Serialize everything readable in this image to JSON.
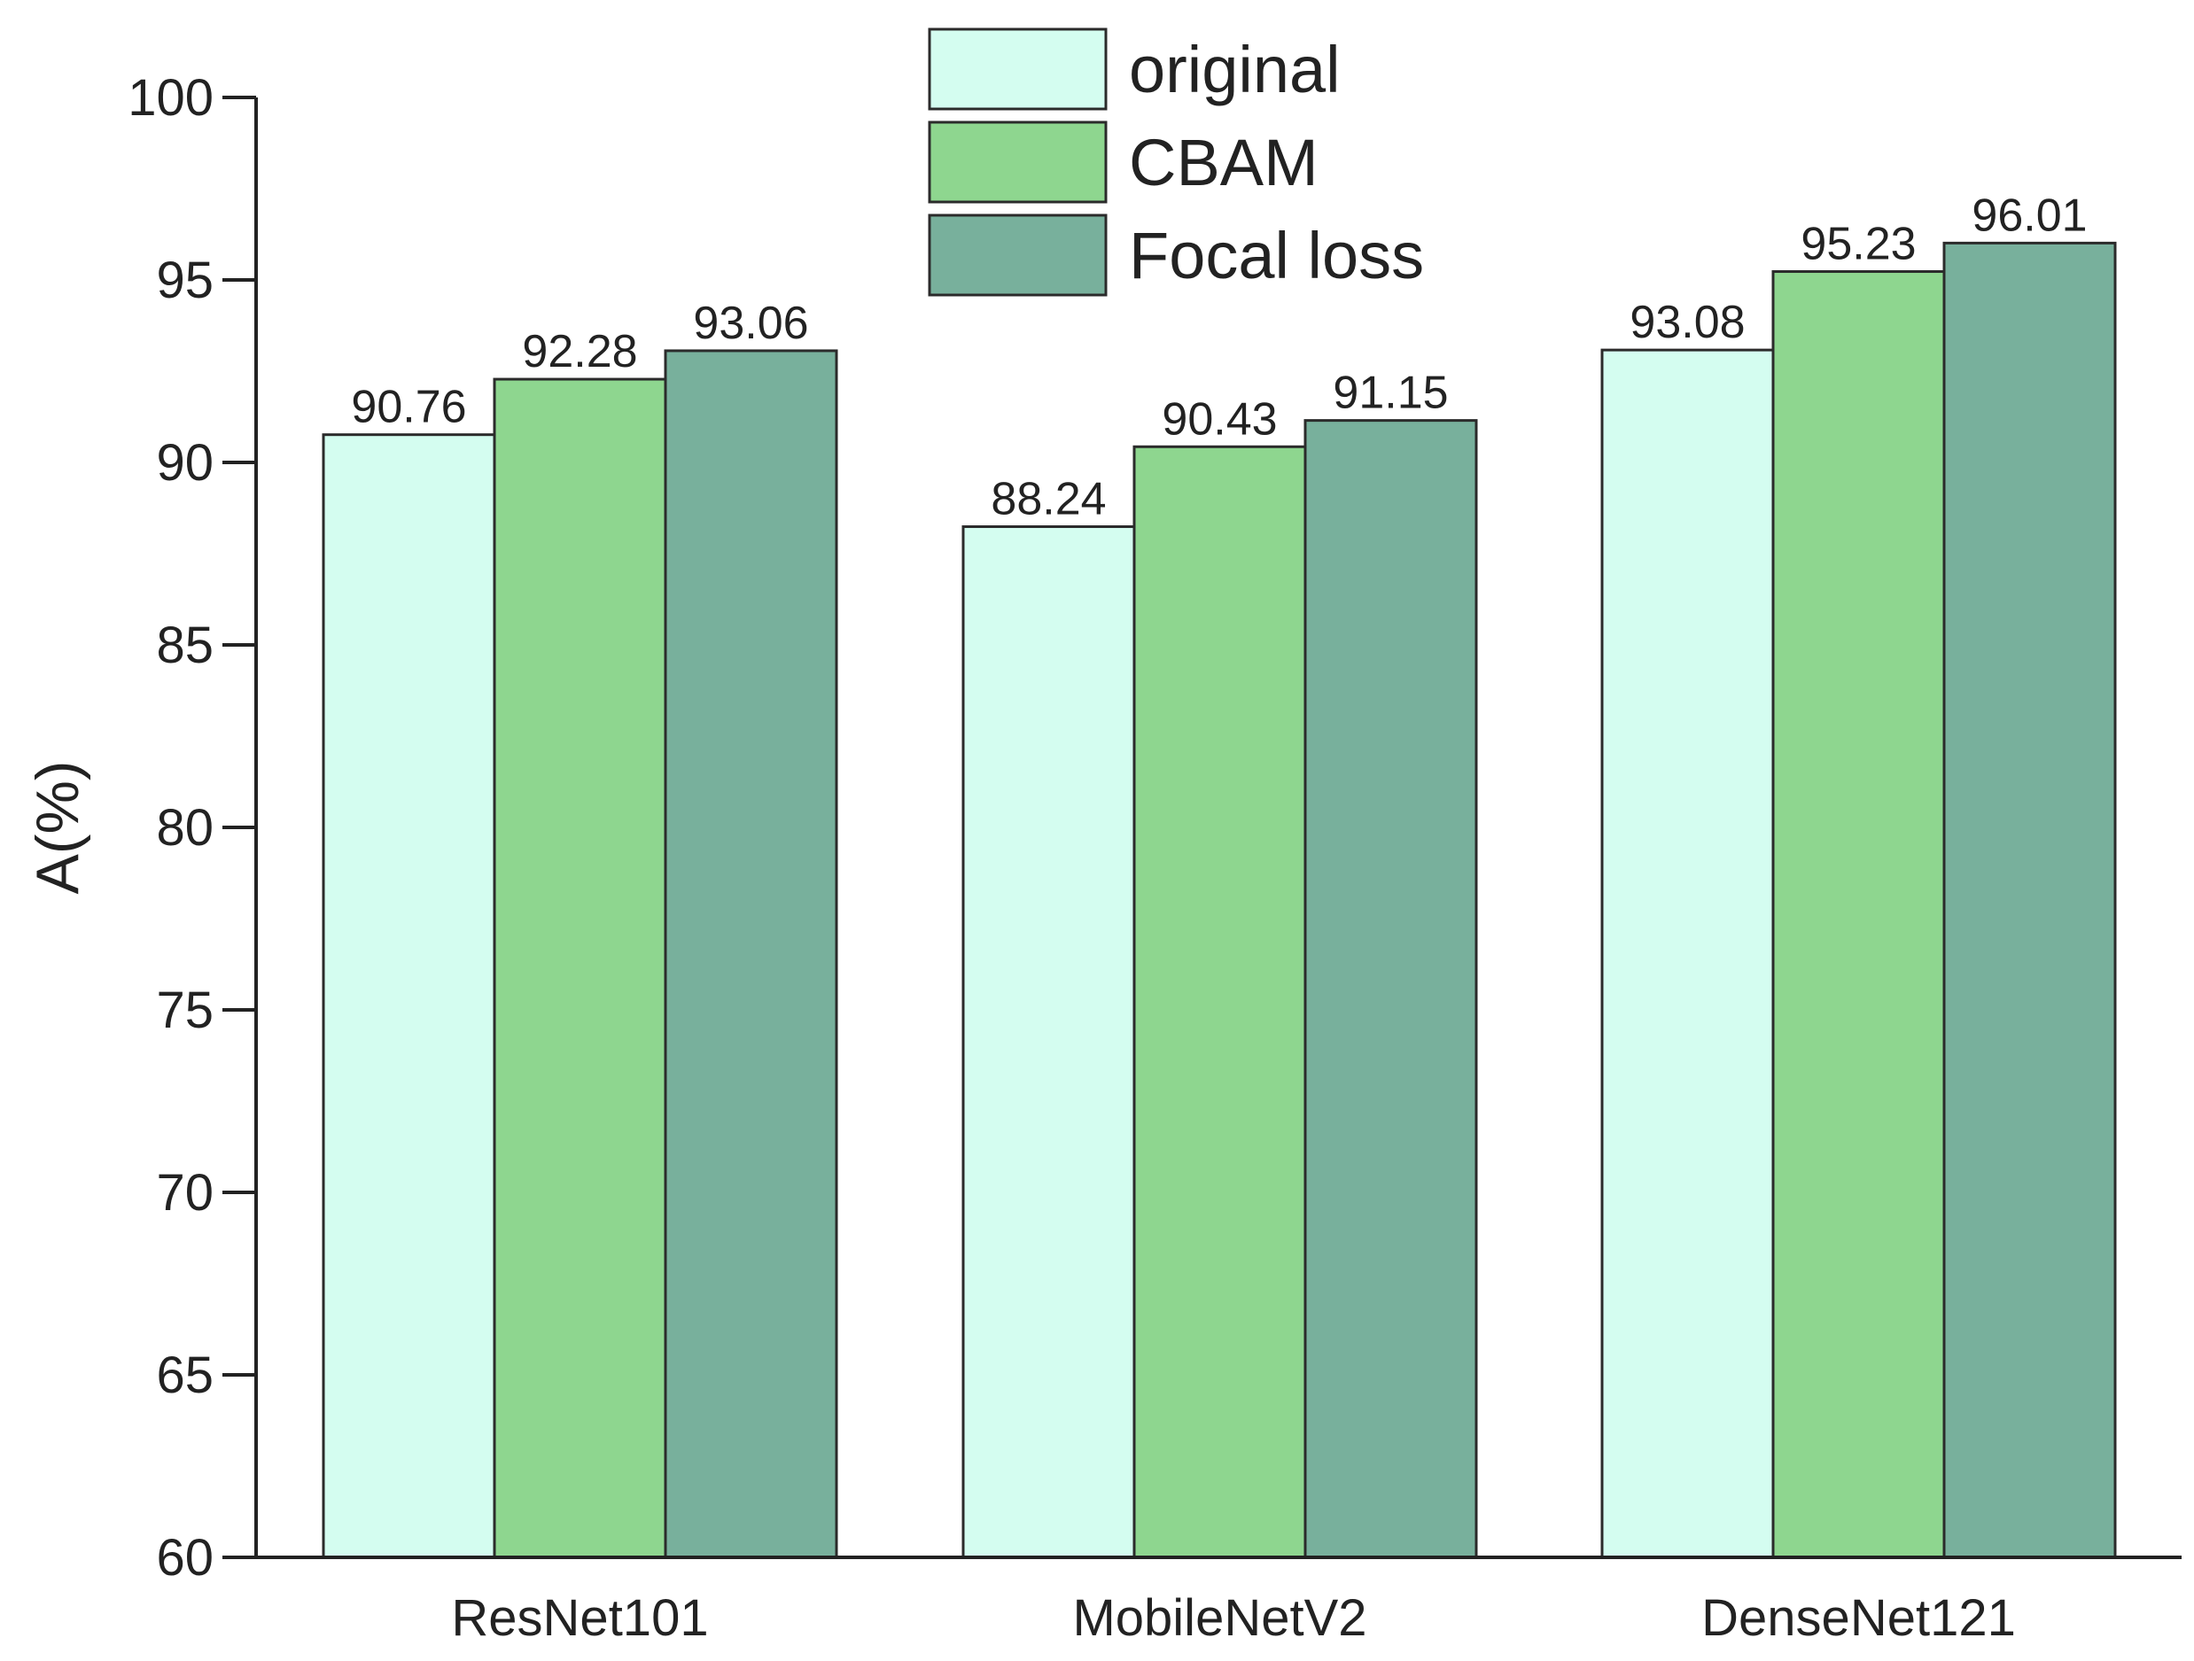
{
  "chart_data": {
    "type": "bar",
    "title": "",
    "xlabel": "",
    "ylabel": "A(%)",
    "ylim": [
      60,
      100
    ],
    "yticks": [
      60,
      65,
      70,
      75,
      80,
      85,
      90,
      95,
      100
    ],
    "grid": false,
    "legend_position": "top-center",
    "categories": [
      "ResNet101",
      "MobileNetV2",
      "DenseNet121"
    ],
    "series": [
      {
        "name": "original",
        "color": "#d4fdf0",
        "values": [
          90.76,
          88.24,
          93.08
        ],
        "labels": [
          "90.76",
          "88.24",
          "93.08"
        ]
      },
      {
        "name": "CBAM",
        "color": "#8ed68f",
        "values": [
          92.28,
          90.43,
          95.23
        ],
        "labels": [
          "92.28",
          "90.43",
          "95.23"
        ]
      },
      {
        "name": "Focal loss",
        "color": "#78b09c",
        "values": [
          93.06,
          91.15,
          96.01
        ],
        "labels": [
          "93.06",
          "91.15",
          "96.01"
        ]
      }
    ]
  }
}
